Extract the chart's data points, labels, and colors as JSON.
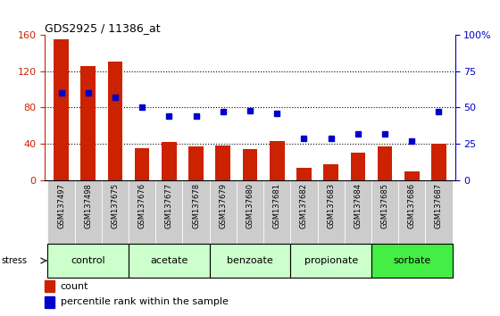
{
  "title": "GDS2925 / 11386_at",
  "samples": [
    "GSM137497",
    "GSM137498",
    "GSM137675",
    "GSM137676",
    "GSM137677",
    "GSM137678",
    "GSM137679",
    "GSM137680",
    "GSM137681",
    "GSM137682",
    "GSM137683",
    "GSM137684",
    "GSM137685",
    "GSM137686",
    "GSM137687"
  ],
  "counts": [
    155,
    126,
    130,
    35,
    42,
    37,
    38,
    34,
    43,
    14,
    17,
    30,
    37,
    10,
    40
  ],
  "percentiles": [
    60,
    60,
    57,
    50,
    44,
    44,
    47,
    48,
    46,
    29,
    29,
    32,
    32,
    27,
    47
  ],
  "groups": [
    {
      "name": "control",
      "start": 0,
      "end": 3,
      "color": "#ccffcc"
    },
    {
      "name": "acetate",
      "start": 3,
      "end": 6,
      "color": "#ccffcc"
    },
    {
      "name": "benzoate",
      "start": 6,
      "end": 9,
      "color": "#ccffcc"
    },
    {
      "name": "propionate",
      "start": 9,
      "end": 12,
      "color": "#ccffcc"
    },
    {
      "name": "sorbate",
      "start": 12,
      "end": 15,
      "color": "#44ee44"
    }
  ],
  "ylim_left": [
    0,
    160
  ],
  "ylim_right": [
    0,
    100
  ],
  "yticks_left": [
    0,
    40,
    80,
    120,
    160
  ],
  "yticks_right": [
    0,
    25,
    50,
    75,
    100
  ],
  "bar_color": "#cc2200",
  "dot_color": "#0000cc",
  "tick_bg_color": "#cccccc"
}
